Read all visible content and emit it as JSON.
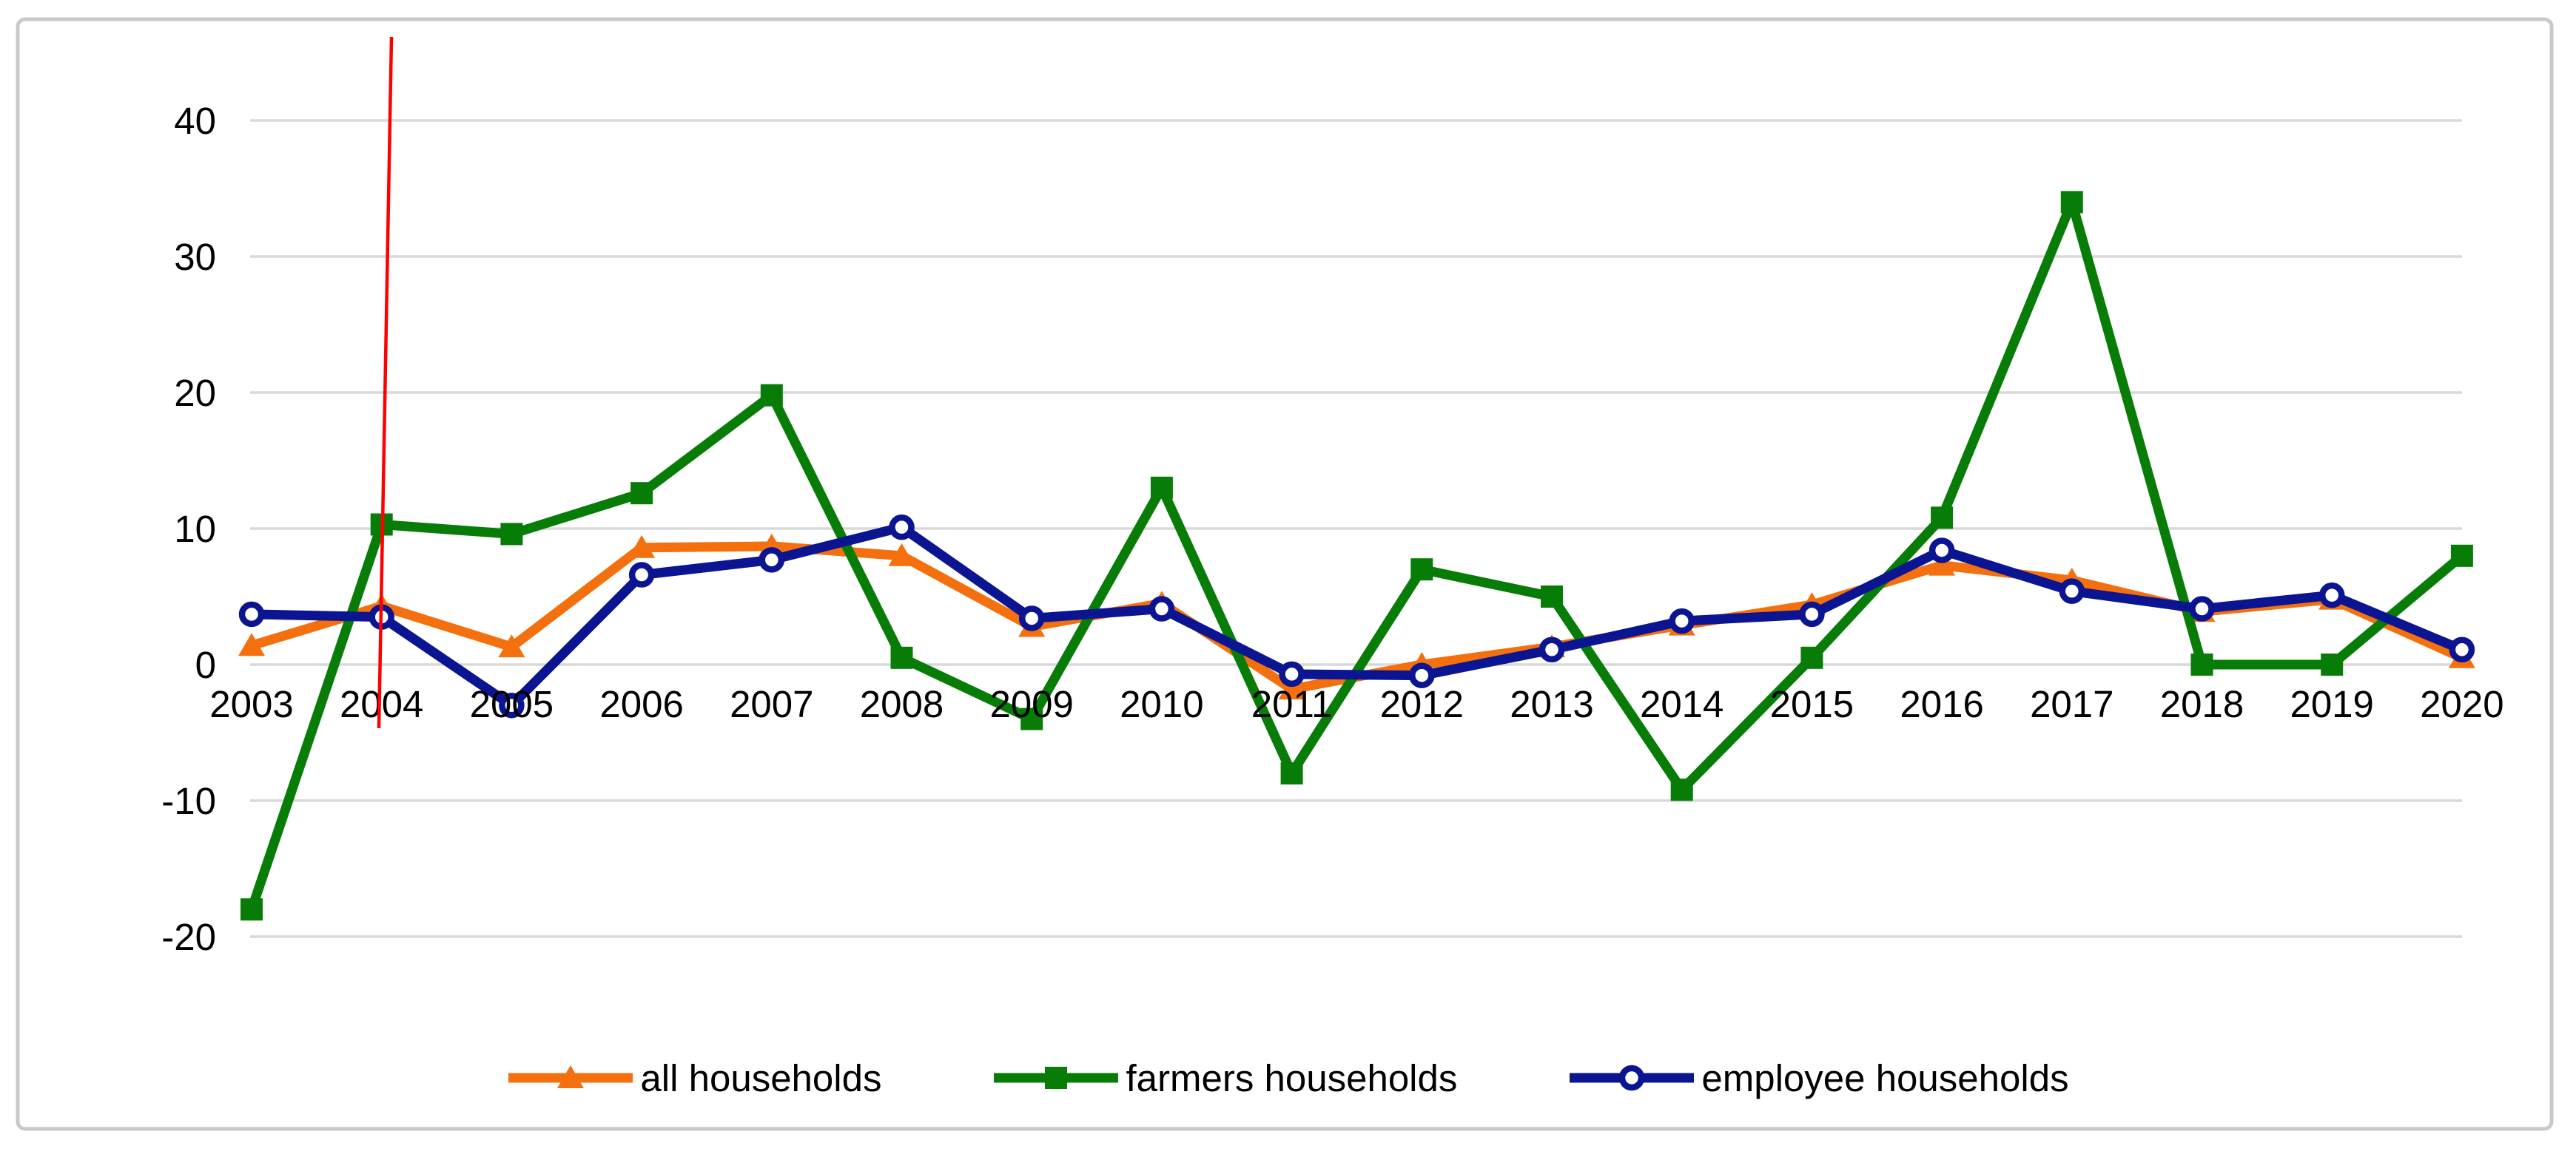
{
  "chart_data": {
    "type": "line",
    "title": "",
    "categories": [
      "2003",
      "2004",
      "2005",
      "2006",
      "2007",
      "2008",
      "2009",
      "2010",
      "2011",
      "2012",
      "2013",
      "2014",
      "2015",
      "2016",
      "2017",
      "2018",
      "2019",
      "2020"
    ],
    "series": [
      {
        "name": "all households",
        "color": "#F4700E",
        "marker": "triangle",
        "values": [
          1.4,
          4.3,
          1.3,
          8.6,
          8.7,
          8.0,
          2.8,
          4.5,
          -1.8,
          0,
          1.3,
          2.9,
          4.4,
          7.3,
          6.2,
          3.9,
          4.8,
          0.5
        ]
      },
      {
        "name": "farmers households",
        "color": "#077C07",
        "marker": "square",
        "values": [
          -18,
          10.3,
          9.6,
          12.6,
          19.8,
          0.5,
          -4,
          13,
          -8,
          7,
          5,
          -9.2,
          0.5,
          10.8,
          34,
          0,
          0,
          8
        ]
      },
      {
        "name": "employee households",
        "color": "#0B1591",
        "marker": "circle",
        "values": [
          3.7,
          3.5,
          -3,
          6.6,
          7.7,
          10.1,
          3.4,
          4.1,
          -0.7,
          -0.8,
          1.1,
          3.2,
          3.7,
          8.4,
          5.4,
          4.1,
          5.1,
          1.1
        ]
      }
    ],
    "yticks": [
      40,
      30,
      20,
      10,
      0,
      -10,
      -20
    ],
    "ylim": [
      -26,
      46
    ],
    "xlabel": "",
    "ylabel": "",
    "grid": true,
    "legend_position": "bottom",
    "annotation": {
      "type": "vertical-line",
      "at_category": "2004",
      "color": "#FE0000"
    }
  },
  "colors": {
    "grid": "#D9D9D9",
    "frame": "#C9C9C9",
    "text": "#000000",
    "background": "#FFFFFF"
  }
}
